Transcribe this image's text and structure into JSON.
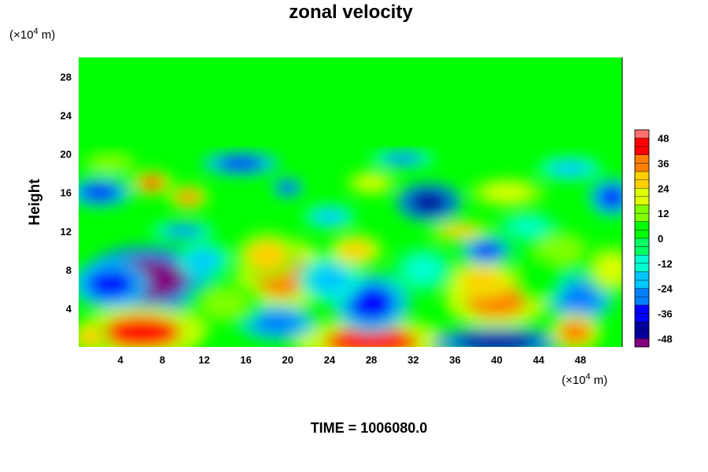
{
  "chart_data": {
    "type": "heatmap",
    "title": "zonal velocity",
    "ylabel": "Height",
    "x_unit_prefix": "(×10",
    "x_unit_exp": "4",
    "x_unit_suffix": " m)",
    "y_unit_prefix": "(×10",
    "y_unit_exp": "4",
    "y_unit_suffix": " m)",
    "xlim": [
      0,
      52
    ],
    "ylim": [
      0,
      30
    ],
    "x_ticks": [
      4,
      8,
      12,
      16,
      20,
      24,
      28,
      32,
      36,
      40,
      44,
      48
    ],
    "y_ticks": [
      4,
      8,
      12,
      16,
      20,
      24,
      28
    ],
    "colorbar": {
      "range": [
        -52,
        52
      ],
      "step": 4,
      "ticks": [
        48,
        36,
        24,
        12,
        0,
        -12,
        -24,
        -36,
        -48
      ]
    },
    "features": [
      {
        "x": 6.5,
        "y": 7.0,
        "value": -50,
        "rx": 5.0,
        "ry": 2.8
      },
      {
        "x": 3.0,
        "y": 6.5,
        "value": -35,
        "rx": 3.0,
        "ry": 2.0
      },
      {
        "x": 6.0,
        "y": 1.5,
        "value": 40,
        "rx": 5.0,
        "ry": 2.2
      },
      {
        "x": 19.5,
        "y": 7.5,
        "value": 36,
        "rx": 3.5,
        "ry": 3.0
      },
      {
        "x": 18.0,
        "y": 9.5,
        "value": 24,
        "rx": 2.5,
        "ry": 2.0
      },
      {
        "x": 28.0,
        "y": 0.5,
        "value": 42,
        "rx": 6.0,
        "ry": 2.0
      },
      {
        "x": 40.0,
        "y": 5.0,
        "value": 36,
        "rx": 4.0,
        "ry": 2.5
      },
      {
        "x": 38.5,
        "y": 7.0,
        "value": 30,
        "rx": 2.5,
        "ry": 1.5
      },
      {
        "x": 40.0,
        "y": 0.5,
        "value": -48,
        "rx": 5.0,
        "ry": 1.2
      },
      {
        "x": 28.0,
        "y": 4.5,
        "value": -36,
        "rx": 3.0,
        "ry": 2.5
      },
      {
        "x": 24.0,
        "y": 7.0,
        "value": -20,
        "rx": 2.5,
        "ry": 2.0
      },
      {
        "x": 19.0,
        "y": 2.5,
        "value": -32,
        "rx": 3.0,
        "ry": 1.5
      },
      {
        "x": 48.0,
        "y": 5.0,
        "value": -30,
        "rx": 2.5,
        "ry": 2.0
      },
      {
        "x": 47.5,
        "y": 1.5,
        "value": 36,
        "rx": 2.0,
        "ry": 1.6
      },
      {
        "x": 51.0,
        "y": 8.0,
        "value": 22,
        "rx": 2.0,
        "ry": 2.0
      },
      {
        "x": 46.0,
        "y": 10.0,
        "value": 12,
        "rx": 3.0,
        "ry": 2.0
      },
      {
        "x": 39.0,
        "y": 10.0,
        "value": -36,
        "rx": 2.0,
        "ry": 1.2
      },
      {
        "x": 12.0,
        "y": 9.0,
        "value": -18,
        "rx": 2.0,
        "ry": 1.5
      },
      {
        "x": 26.5,
        "y": 10.0,
        "value": 30,
        "rx": 2.0,
        "ry": 1.3
      },
      {
        "x": 7.0,
        "y": 17.0,
        "value": 40,
        "rx": 1.6,
        "ry": 1.0
      },
      {
        "x": 10.5,
        "y": 15.5,
        "value": 34,
        "rx": 1.5,
        "ry": 1.0
      },
      {
        "x": 2.0,
        "y": 16.0,
        "value": -40,
        "rx": 2.5,
        "ry": 1.2
      },
      {
        "x": 15.5,
        "y": 19.0,
        "value": -38,
        "rx": 3.0,
        "ry": 1.0
      },
      {
        "x": 20.0,
        "y": 16.5,
        "value": -40,
        "rx": 1.2,
        "ry": 0.8
      },
      {
        "x": 33.5,
        "y": 15.0,
        "value": -45,
        "rx": 2.5,
        "ry": 1.6
      },
      {
        "x": 41.0,
        "y": 16.0,
        "value": 20,
        "rx": 3.0,
        "ry": 1.2
      },
      {
        "x": 51.0,
        "y": 15.5,
        "value": -40,
        "rx": 1.8,
        "ry": 1.6
      },
      {
        "x": 43.0,
        "y": 12.5,
        "value": -12,
        "rx": 2.5,
        "ry": 1.2
      },
      {
        "x": 36.5,
        "y": 12.0,
        "value": 28,
        "rx": 2.5,
        "ry": 0.9
      },
      {
        "x": 10.0,
        "y": 12.0,
        "value": -25,
        "rx": 2.5,
        "ry": 0.8
      },
      {
        "x": 28.0,
        "y": 17.0,
        "value": 20,
        "rx": 2.0,
        "ry": 1.0
      },
      {
        "x": 3.0,
        "y": 19.0,
        "value": 15,
        "rx": 2.0,
        "ry": 1.0
      },
      {
        "x": 47.0,
        "y": 18.5,
        "value": -20,
        "rx": 2.5,
        "ry": 1.0
      },
      {
        "x": 24.0,
        "y": 13.5,
        "value": -22,
        "rx": 2.0,
        "ry": 1.0
      },
      {
        "x": 31.0,
        "y": 19.5,
        "value": -25,
        "rx": 2.5,
        "ry": 0.8
      },
      {
        "x": 14.0,
        "y": 4.5,
        "value": 10,
        "rx": 3.0,
        "ry": 2.0
      },
      {
        "x": 33.0,
        "y": 8.0,
        "value": -10,
        "rx": 2.5,
        "ry": 2.0
      },
      {
        "x": 44.0,
        "y": 7.0,
        "value": 8,
        "rx": 2.0,
        "ry": 2.0
      },
      {
        "x": 1.0,
        "y": 1.0,
        "value": 25,
        "rx": 1.5,
        "ry": 1.5
      }
    ],
    "upper_layer": {
      "from_height": 21,
      "value": 0
    },
    "colors": {
      "colormap": [
        "#800080",
        "#00009a",
        "#0000ff",
        "#0080ff",
        "#00c8ff",
        "#00ffd0",
        "#00ff60",
        "#00ff00",
        "#80ff00",
        "#e0ff00",
        "#ffd000",
        "#ff8000",
        "#ff0000",
        "#ff7070"
      ]
    }
  },
  "bottom_label": "TIME = 1006080.0"
}
